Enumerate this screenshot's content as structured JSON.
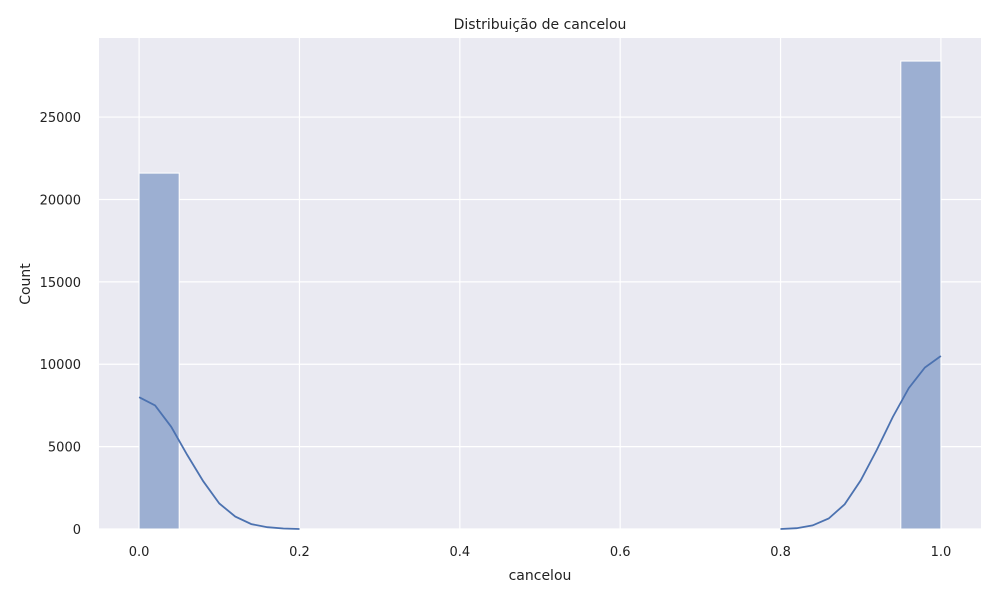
{
  "chart_data": {
    "type": "bar",
    "title": "Distribuição de cancelou",
    "xlabel": "cancelou",
    "ylabel": "Count",
    "xlim": [
      -0.05,
      1.05
    ],
    "ylim": [
      0,
      29800
    ],
    "x_ticks": [
      0.0,
      0.2,
      0.4,
      0.6,
      0.8,
      1.0
    ],
    "x_tick_labels": [
      "0.0",
      "0.2",
      "0.4",
      "0.6",
      "0.8",
      "1.0"
    ],
    "y_ticks": [
      0,
      5000,
      10000,
      15000,
      20000,
      25000
    ],
    "y_tick_labels": [
      "0",
      "5000",
      "10000",
      "15000",
      "20000",
      "25000"
    ],
    "grid": true,
    "bars": [
      {
        "x_start": 0.0,
        "x_end": 0.05,
        "value": 21600
      },
      {
        "x_start": 0.95,
        "x_end": 1.0,
        "value": 28400
      }
    ],
    "kde": {
      "x": [
        0.0,
        0.02,
        0.04,
        0.06,
        0.08,
        0.1,
        0.12,
        0.14,
        0.16,
        0.18,
        0.2,
        0.8,
        0.82,
        0.84,
        0.86,
        0.88,
        0.9,
        0.92,
        0.94,
        0.96,
        0.98,
        1.0
      ],
      "y": [
        8000,
        7500,
        6200,
        4500,
        2900,
        1550,
        750,
        300,
        110,
        30,
        0,
        0,
        50,
        220,
        640,
        1500,
        2950,
        4800,
        6800,
        8550,
        9800,
        10500
      ]
    },
    "colors": {
      "background": "#eaeaf2",
      "grid": "#ffffff",
      "bar_fill": "#9cafd2",
      "bar_edge": "#ffffff",
      "kde_line": "#4c72b0",
      "text": "#222222"
    }
  }
}
